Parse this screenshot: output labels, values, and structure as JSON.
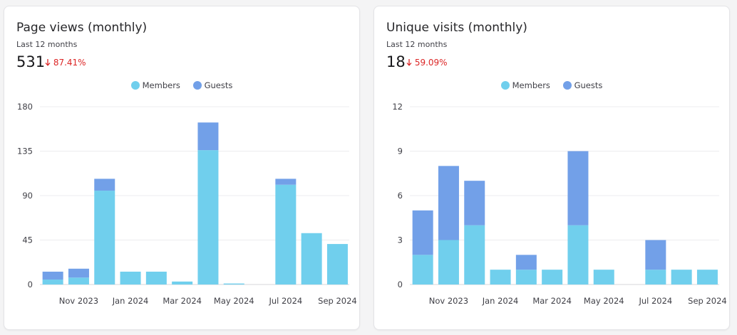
{
  "colors": {
    "members": "#70cfed",
    "guests": "#72a0e8",
    "delta": "#dc2626"
  },
  "cards": [
    {
      "title": "Page views (monthly)",
      "subtitle": "Last 12 months",
      "total": "531",
      "delta": "87.41%",
      "delta_icon": "arrow-down-icon",
      "legend": [
        "Members",
        "Guests"
      ],
      "chart_data": {
        "type": "bar",
        "stacked": true,
        "categories": [
          "Oct 2023",
          "Nov 2023",
          "Dec 2023",
          "Jan 2024",
          "Feb 2024",
          "Mar 2024",
          "Apr 2024",
          "May 2024",
          "Jun 2024",
          "Jul 2024",
          "Aug 2024",
          "Sep 2024"
        ],
        "x_tick_labels": [
          "",
          "Nov 2023",
          "",
          "Jan 2024",
          "",
          "Mar 2024",
          "",
          "May 2024",
          "",
          "Jul 2024",
          "",
          "Sep 2024"
        ],
        "series": [
          {
            "name": "Members",
            "values": [
              5,
              7,
              95,
              13,
              13,
              3,
              136,
              1,
              0,
              101,
              52,
              41
            ]
          },
          {
            "name": "Guests",
            "values": [
              8,
              9,
              12,
              0,
              0,
              0,
              28,
              0,
              0,
              6,
              0,
              0
            ]
          }
        ],
        "ylim": [
          0,
          180
        ],
        "yticks": [
          0,
          45,
          90,
          135,
          180
        ],
        "grid": true,
        "legend_position": "top-center"
      }
    },
    {
      "title": "Unique visits (monthly)",
      "subtitle": "Last 12 months",
      "total": "18",
      "delta": "59.09%",
      "delta_icon": "arrow-down-icon",
      "legend": [
        "Members",
        "Guests"
      ],
      "chart_data": {
        "type": "bar",
        "stacked": true,
        "categories": [
          "Oct 2023",
          "Nov 2023",
          "Dec 2023",
          "Jan 2024",
          "Feb 2024",
          "Mar 2024",
          "Apr 2024",
          "May 2024",
          "Jun 2024",
          "Jul 2024",
          "Aug 2024",
          "Sep 2024"
        ],
        "x_tick_labels": [
          "",
          "Nov 2023",
          "",
          "Jan 2024",
          "",
          "Mar 2024",
          "",
          "May 2024",
          "",
          "Jul 2024",
          "",
          "Sep 2024"
        ],
        "series": [
          {
            "name": "Members",
            "values": [
              2,
              3,
              4,
              1,
              1,
              1,
              4,
              1,
              0,
              1,
              1,
              1
            ]
          },
          {
            "name": "Guests",
            "values": [
              3,
              5,
              3,
              0,
              1,
              0,
              5,
              0,
              0,
              2,
              0,
              0
            ]
          }
        ],
        "ylim": [
          0,
          12
        ],
        "yticks": [
          0,
          3,
          6,
          9,
          12
        ],
        "grid": true,
        "legend_position": "top-center"
      }
    }
  ]
}
